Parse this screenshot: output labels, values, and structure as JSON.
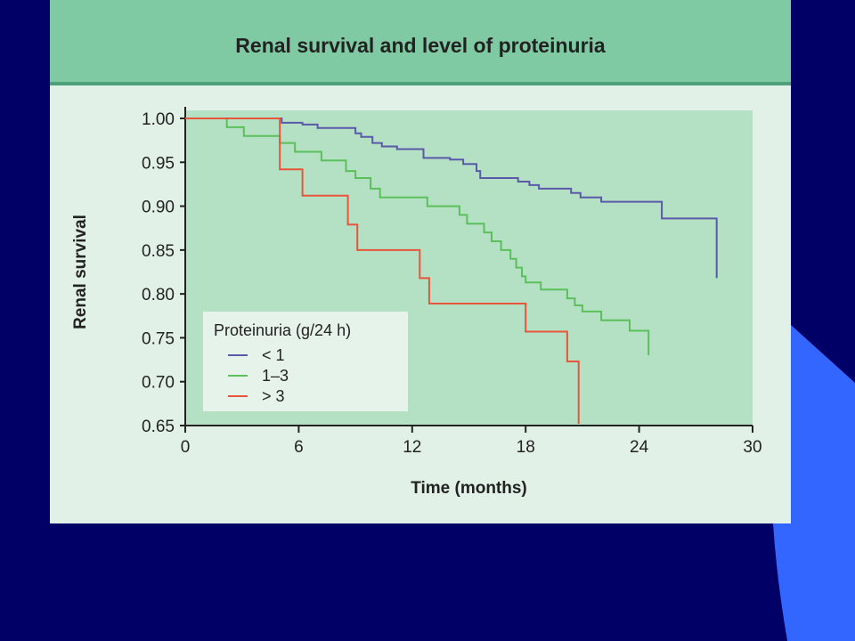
{
  "slide": {
    "background_color": "#000066",
    "accent_color": "#3366ff"
  },
  "chart_data": {
    "type": "line",
    "step": true,
    "title": "Renal survival and level of proteinuria",
    "xlabel": "Time (months)",
    "ylabel": "Renal survival",
    "xlim": [
      0,
      30
    ],
    "ylim": [
      0.65,
      1.0
    ],
    "x_ticks": [
      "0",
      "6",
      "12",
      "18",
      "24",
      "30"
    ],
    "y_ticks": [
      "1.00",
      "0.95",
      "0.90",
      "0.85",
      "0.80",
      "0.75",
      "0.70",
      "0.65"
    ],
    "grid": false,
    "legend_title": "Proteinuria (g/24 h)",
    "legend_position": "bottom-left",
    "series": [
      {
        "name": "< 1",
        "color": "#5a5aa8",
        "points": [
          [
            0,
            1.0
          ],
          [
            5.1,
            1.0
          ],
          [
            5.1,
            0.995
          ],
          [
            6.2,
            0.995
          ],
          [
            6.2,
            0.993
          ],
          [
            7.0,
            0.993
          ],
          [
            7.0,
            0.989
          ],
          [
            9.0,
            0.989
          ],
          [
            9.0,
            0.983
          ],
          [
            9.3,
            0.983
          ],
          [
            9.3,
            0.979
          ],
          [
            9.9,
            0.979
          ],
          [
            9.9,
            0.972
          ],
          [
            10.4,
            0.972
          ],
          [
            10.4,
            0.968
          ],
          [
            11.2,
            0.968
          ],
          [
            11.2,
            0.965
          ],
          [
            12.6,
            0.965
          ],
          [
            12.6,
            0.955
          ],
          [
            14.0,
            0.955
          ],
          [
            14.0,
            0.953
          ],
          [
            14.7,
            0.953
          ],
          [
            14.7,
            0.948
          ],
          [
            15.4,
            0.948
          ],
          [
            15.4,
            0.94
          ],
          [
            15.6,
            0.94
          ],
          [
            15.6,
            0.932
          ],
          [
            17.6,
            0.932
          ],
          [
            17.6,
            0.928
          ],
          [
            18.2,
            0.928
          ],
          [
            18.2,
            0.924
          ],
          [
            18.7,
            0.924
          ],
          [
            18.7,
            0.92
          ],
          [
            20.4,
            0.92
          ],
          [
            20.4,
            0.915
          ],
          [
            20.9,
            0.915
          ],
          [
            20.9,
            0.91
          ],
          [
            22.0,
            0.91
          ],
          [
            22.0,
            0.905
          ],
          [
            25.2,
            0.905
          ],
          [
            25.2,
            0.886
          ],
          [
            28.1,
            0.886
          ],
          [
            28.1,
            0.818
          ]
        ]
      },
      {
        "name": "1–3",
        "color": "#5bbf5b",
        "points": [
          [
            0,
            1.0
          ],
          [
            2.2,
            1.0
          ],
          [
            2.2,
            0.99
          ],
          [
            3.1,
            0.99
          ],
          [
            3.1,
            0.98
          ],
          [
            5.0,
            0.98
          ],
          [
            5.0,
            0.972
          ],
          [
            5.8,
            0.972
          ],
          [
            5.8,
            0.962
          ],
          [
            7.2,
            0.962
          ],
          [
            7.2,
            0.952
          ],
          [
            8.5,
            0.952
          ],
          [
            8.5,
            0.94
          ],
          [
            9.0,
            0.94
          ],
          [
            9.0,
            0.932
          ],
          [
            9.8,
            0.932
          ],
          [
            9.8,
            0.92
          ],
          [
            10.3,
            0.92
          ],
          [
            10.3,
            0.91
          ],
          [
            12.8,
            0.91
          ],
          [
            12.8,
            0.9
          ],
          [
            14.5,
            0.9
          ],
          [
            14.5,
            0.89
          ],
          [
            14.9,
            0.89
          ],
          [
            14.9,
            0.88
          ],
          [
            15.8,
            0.88
          ],
          [
            15.8,
            0.87
          ],
          [
            16.2,
            0.87
          ],
          [
            16.2,
            0.86
          ],
          [
            16.7,
            0.86
          ],
          [
            16.7,
            0.85
          ],
          [
            17.2,
            0.85
          ],
          [
            17.2,
            0.84
          ],
          [
            17.5,
            0.84
          ],
          [
            17.5,
            0.83
          ],
          [
            17.8,
            0.83
          ],
          [
            17.8,
            0.82
          ],
          [
            18.0,
            0.82
          ],
          [
            18.0,
            0.813
          ],
          [
            18.8,
            0.813
          ],
          [
            18.8,
            0.805
          ],
          [
            20.2,
            0.805
          ],
          [
            20.2,
            0.795
          ],
          [
            20.6,
            0.795
          ],
          [
            20.6,
            0.787
          ],
          [
            21.0,
            0.787
          ],
          [
            21.0,
            0.78
          ],
          [
            22.0,
            0.78
          ],
          [
            22.0,
            0.77
          ],
          [
            23.5,
            0.77
          ],
          [
            23.5,
            0.758
          ],
          [
            24.5,
            0.758
          ],
          [
            24.5,
            0.73
          ]
        ]
      },
      {
        "name": "> 3",
        "color": "#e8553a",
        "points": [
          [
            0,
            1.0
          ],
          [
            5.0,
            1.0
          ],
          [
            5.0,
            0.942
          ],
          [
            6.2,
            0.942
          ],
          [
            6.2,
            0.912
          ],
          [
            8.6,
            0.912
          ],
          [
            8.6,
            0.879
          ],
          [
            9.1,
            0.879
          ],
          [
            9.1,
            0.85
          ],
          [
            12.4,
            0.85
          ],
          [
            12.4,
            0.818
          ],
          [
            12.9,
            0.818
          ],
          [
            12.9,
            0.789
          ],
          [
            18.0,
            0.789
          ],
          [
            18.0,
            0.757
          ],
          [
            20.2,
            0.757
          ],
          [
            20.2,
            0.723
          ],
          [
            20.8,
            0.723
          ],
          [
            20.8,
            0.652
          ]
        ]
      }
    ]
  }
}
